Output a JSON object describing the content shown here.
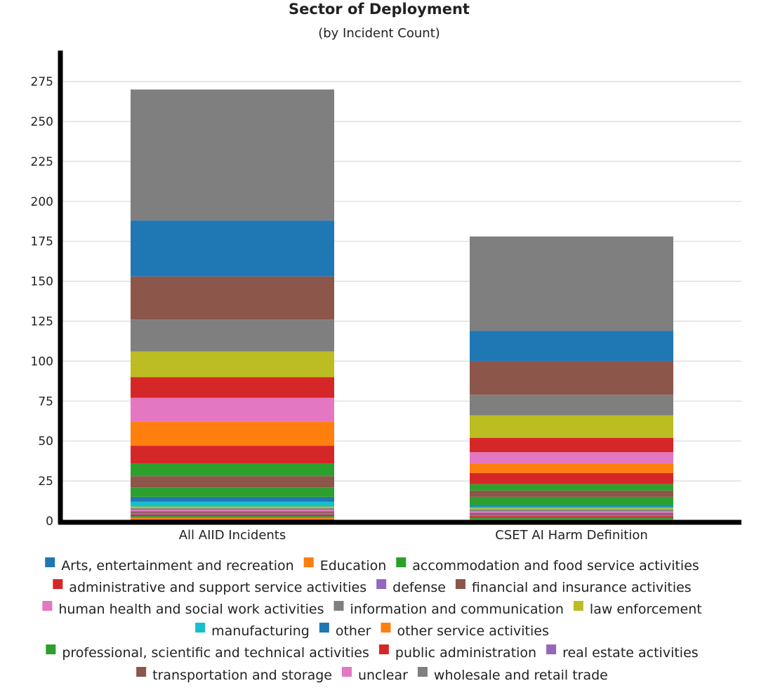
{
  "chart_data": {
    "type": "bar",
    "stacked": true,
    "title": "Sector of Deployment",
    "subtitle": "(by Incident Count)",
    "xlabel": "",
    "ylabel": "",
    "ylim": [
      0,
      280
    ],
    "yticks": [
      0,
      25,
      50,
      75,
      100,
      125,
      150,
      175,
      200,
      225,
      250,
      275
    ],
    "grid": "horizontal",
    "legend_position": "bottom",
    "categories": [
      "All AIID Incidents",
      "CSET AI Harm Definition"
    ],
    "series": [
      {
        "name": "Arts, entertainment and recreation",
        "color": "#1f77b4",
        "values": [
          1,
          0
        ]
      },
      {
        "name": "Education",
        "color": "#ff7f0e",
        "values": [
          1,
          1
        ]
      },
      {
        "name": "accommodation and food service activities",
        "color": "#2ca02c",
        "values": [
          1,
          1
        ]
      },
      {
        "name": "administrative and support service activities",
        "color": "#d62728",
        "values": [
          1,
          1
        ]
      },
      {
        "name": "defense",
        "color": "#9467bd",
        "values": [
          1,
          1
        ]
      },
      {
        "name": "financial and insurance activities",
        "color": "#8c564b",
        "values": [
          1,
          1
        ]
      },
      {
        "name": "human health and social work activities",
        "color": "#e377c2",
        "values": [
          1,
          1
        ]
      },
      {
        "name": "information and communication",
        "color": "#7f7f7f",
        "values": [
          1,
          1
        ]
      },
      {
        "name": "law enforcement",
        "color": "#bcbd22",
        "values": [
          1,
          1
        ]
      },
      {
        "name": "manufacturing",
        "color": "#17becf",
        "values": [
          3,
          1
        ]
      },
      {
        "name": "other",
        "color": "#1f77b4",
        "values": [
          3,
          1
        ]
      },
      {
        "name": "other service activities",
        "color": "#ff7f0e",
        "values": [
          0,
          0
        ]
      },
      {
        "name": "professional, scientific and technical activities",
        "color": "#2ca02c",
        "values": [
          6,
          5
        ]
      },
      {
        "name": "public administration",
        "color": "#d62728",
        "values": [
          0,
          0
        ]
      },
      {
        "name": "real estate activities",
        "color": "#9467bd",
        "values": [
          0,
          0
        ]
      },
      {
        "name": "transportation and storage",
        "color": "#8c564b",
        "values": [
          7,
          4
        ]
      },
      {
        "name": "unclear",
        "color": "#e377c2",
        "values": [
          0,
          0
        ]
      },
      {
        "name": "wholesale and retail trade",
        "color": "#7f7f7f",
        "values": [
          0,
          0
        ]
      },
      {
        "name": "accommodation and food service activities",
        "color": "#2ca02c",
        "values": [
          8,
          4
        ]
      },
      {
        "name": "public administration",
        "color": "#d62728",
        "values": [
          11,
          7
        ]
      },
      {
        "name": "other service activities",
        "color": "#ff7f0e",
        "values": [
          15,
          6
        ]
      },
      {
        "name": "unclear",
        "color": "#e377c2",
        "values": [
          15,
          7
        ]
      },
      {
        "name": "administrative and support service activities",
        "color": "#d62728",
        "values": [
          13,
          9
        ]
      },
      {
        "name": "law enforcement",
        "color": "#bcbd22",
        "values": [
          16,
          14
        ]
      },
      {
        "name": "information and communication",
        "color": "#7f7f7f",
        "values": [
          20,
          13
        ]
      },
      {
        "name": "financial and insurance activities",
        "color": "#8c564b",
        "values": [
          27,
          21
        ]
      },
      {
        "name": "other",
        "color": "#1f77b4",
        "values": [
          35,
          19
        ]
      },
      {
        "name": "wholesale and retail trade",
        "color": "#7f7f7f",
        "values": [
          82,
          59
        ]
      }
    ],
    "legend": {
      "rows": [
        [
          {
            "label": "Arts, entertainment and recreation",
            "color": "#1f77b4"
          },
          {
            "label": "Education",
            "color": "#ff7f0e"
          },
          {
            "label": "accommodation and food service activities",
            "color": "#2ca02c"
          }
        ],
        [
          {
            "label": "administrative and support service activities",
            "color": "#d62728"
          },
          {
            "label": "defense",
            "color": "#9467bd"
          },
          {
            "label": "financial and insurance activities",
            "color": "#8c564b"
          }
        ],
        [
          {
            "label": "human health and social work activities",
            "color": "#e377c2"
          },
          {
            "label": "information and communication",
            "color": "#7f7f7f"
          },
          {
            "label": "law enforcement",
            "color": "#bcbd22"
          }
        ],
        [
          {
            "label": "manufacturing",
            "color": "#17becf"
          },
          {
            "label": "other",
            "color": "#1f77b4"
          },
          {
            "label": "other service activities",
            "color": "#ff7f0e"
          }
        ],
        [
          {
            "label": "professional, scientific and technical activities",
            "color": "#2ca02c"
          },
          {
            "label": "public administration",
            "color": "#d62728"
          },
          {
            "label": "real estate activities",
            "color": "#9467bd"
          }
        ],
        [
          {
            "label": "transportation and storage",
            "color": "#8c564b"
          },
          {
            "label": "unclear",
            "color": "#e377c2"
          },
          {
            "label": "wholesale and retail trade",
            "color": "#7f7f7f"
          }
        ]
      ]
    }
  }
}
